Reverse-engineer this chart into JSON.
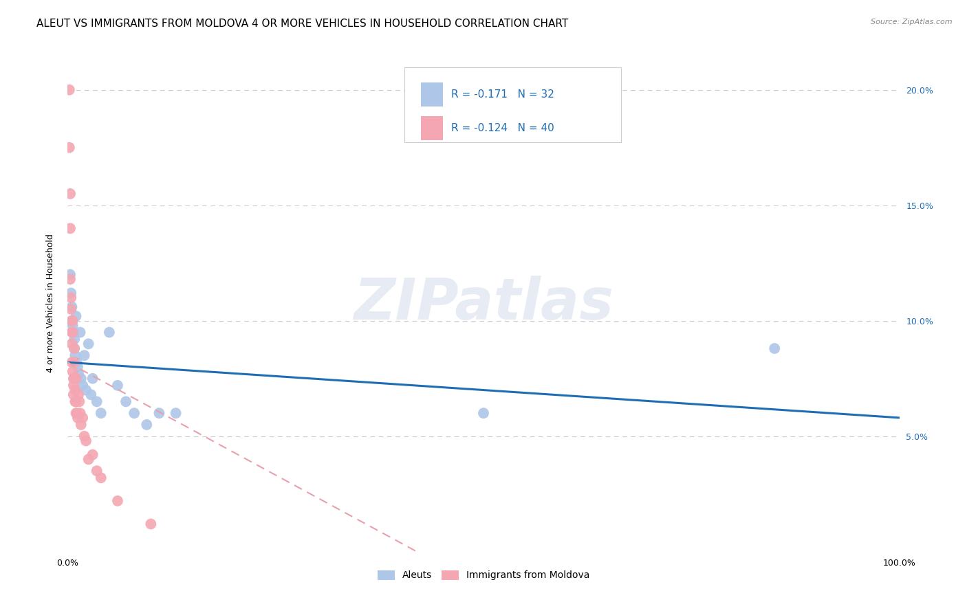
{
  "title": "ALEUT VS IMMIGRANTS FROM MOLDOVA 4 OR MORE VEHICLES IN HOUSEHOLD CORRELATION CHART",
  "source": "Source: ZipAtlas.com",
  "ylabel": "4 or more Vehicles in Household",
  "xlim": [
    0,
    1.0
  ],
  "ylim": [
    0,
    0.215
  ],
  "x_tick_positions": [
    0.0,
    0.1,
    0.2,
    0.3,
    0.4,
    0.5,
    0.6,
    0.7,
    0.8,
    0.9,
    1.0
  ],
  "x_tick_labels": [
    "0.0%",
    "",
    "",
    "",
    "",
    "",
    "",
    "",
    "",
    "",
    "100.0%"
  ],
  "y_ticks": [
    0.05,
    0.1,
    0.15,
    0.2
  ],
  "y_tick_labels_right": [
    "5.0%",
    "10.0%",
    "15.0%",
    "20.0%"
  ],
  "legend_aleuts_R": "-0.171",
  "legend_aleuts_N": "32",
  "legend_moldova_R": "-0.124",
  "legend_moldova_N": "40",
  "aleuts_color": "#aec6e8",
  "moldova_color": "#f4a7b2",
  "trendline_aleuts_color": "#1f6eb5",
  "trendline_moldova_color": "#e8a0aa",
  "background_color": "#ffffff",
  "watermark": "ZIPatlas",
  "aleuts_x": [
    0.003,
    0.004,
    0.005,
    0.005,
    0.006,
    0.007,
    0.008,
    0.008,
    0.009,
    0.01,
    0.011,
    0.012,
    0.013,
    0.015,
    0.016,
    0.018,
    0.02,
    0.022,
    0.025,
    0.028,
    0.03,
    0.035,
    0.04,
    0.05,
    0.06,
    0.07,
    0.08,
    0.095,
    0.11,
    0.13,
    0.5,
    0.85
  ],
  "aleuts_y": [
    0.12,
    0.112,
    0.106,
    0.1,
    0.098,
    0.095,
    0.092,
    0.088,
    0.085,
    0.102,
    0.082,
    0.08,
    0.077,
    0.095,
    0.075,
    0.072,
    0.085,
    0.07,
    0.09,
    0.068,
    0.075,
    0.065,
    0.06,
    0.095,
    0.072,
    0.065,
    0.06,
    0.055,
    0.06,
    0.06,
    0.06,
    0.088
  ],
  "moldova_x": [
    0.002,
    0.002,
    0.003,
    0.003,
    0.003,
    0.004,
    0.004,
    0.005,
    0.005,
    0.005,
    0.005,
    0.006,
    0.006,
    0.006,
    0.007,
    0.007,
    0.007,
    0.008,
    0.008,
    0.008,
    0.009,
    0.009,
    0.01,
    0.01,
    0.01,
    0.011,
    0.012,
    0.013,
    0.014,
    0.015,
    0.016,
    0.018,
    0.02,
    0.022,
    0.025,
    0.03,
    0.035,
    0.04,
    0.06,
    0.1
  ],
  "moldova_y": [
    0.2,
    0.175,
    0.155,
    0.14,
    0.118,
    0.11,
    0.105,
    0.1,
    0.095,
    0.09,
    0.082,
    0.1,
    0.095,
    0.078,
    0.075,
    0.072,
    0.068,
    0.088,
    0.082,
    0.075,
    0.07,
    0.065,
    0.075,
    0.065,
    0.06,
    0.06,
    0.058,
    0.068,
    0.065,
    0.06,
    0.055,
    0.058,
    0.05,
    0.048,
    0.04,
    0.042,
    0.035,
    0.032,
    0.022,
    0.012
  ],
  "trendline_aleuts_x0": 0.0,
  "trendline_aleuts_y0": 0.082,
  "trendline_aleuts_x1": 1.0,
  "trendline_aleuts_y1": 0.058,
  "trendline_moldova_x0": 0.0,
  "trendline_moldova_y0": 0.082,
  "trendline_moldova_x1": 0.42,
  "trendline_moldova_y1": 0.0,
  "title_fontsize": 11,
  "axis_label_fontsize": 9,
  "tick_fontsize": 9,
  "legend_fontsize": 11
}
